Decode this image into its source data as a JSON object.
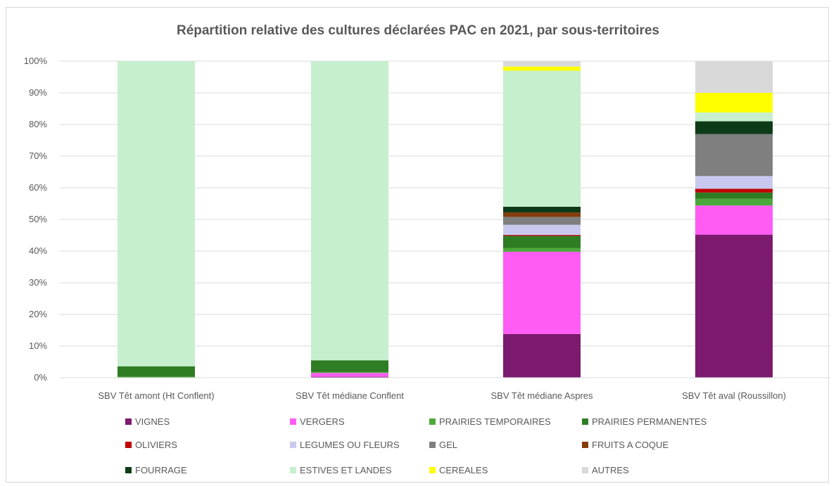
{
  "chart_data": {
    "type": "bar",
    "stacked": true,
    "title": "Répartition relative des cultures déclarées PAC en 2021, par sous-territoires",
    "xlabel": "",
    "ylabel": "",
    "ylim": [
      0,
      100
    ],
    "y_ticks": [
      "0%",
      "10%",
      "20%",
      "30%",
      "40%",
      "50%",
      "60%",
      "70%",
      "80%",
      "90%",
      "100%"
    ],
    "categories": [
      "SBV Têt amont (Ht Conflent)",
      "SBV Têt médiane Conflent",
      "SBV Têt médiane Aspres",
      "SBV Têt aval (Roussillon)"
    ],
    "series": [
      {
        "name": "VIGNES",
        "color": "#7b1a6e",
        "values": [
          0,
          0.3,
          13.8,
          45.2
        ]
      },
      {
        "name": "VERGERS",
        "color": "#ff5cf4",
        "values": [
          0,
          1.2,
          26.0,
          9.2
        ]
      },
      {
        "name": "PRAIRIES TEMPORAIRES",
        "color": "#4ca83c",
        "values": [
          0.3,
          0.3,
          1.2,
          2.1
        ]
      },
      {
        "name": "PRAIRIES PERMANENTES",
        "color": "#2e7d23",
        "values": [
          3.3,
          3.7,
          3.8,
          2.0
        ]
      },
      {
        "name": "OLIVIERS",
        "color": "#c00000",
        "values": [
          0,
          0,
          0.3,
          1.2
        ]
      },
      {
        "name": "LEGUMES OU FLEURS",
        "color": "#c9c9f0",
        "values": [
          0,
          0,
          3.2,
          4.0
        ]
      },
      {
        "name": "GEL",
        "color": "#7f7f7f",
        "values": [
          0,
          0,
          2.5,
          13.3
        ]
      },
      {
        "name": "FRUITS A COQUE",
        "color": "#843c0c",
        "values": [
          0,
          0,
          1.4,
          0
        ]
      },
      {
        "name": "FOURRAGE",
        "color": "#0d3b17",
        "values": [
          0,
          0,
          1.8,
          4.0
        ]
      },
      {
        "name": "ESTIVES ET LANDES",
        "color": "#c6efce",
        "values": [
          96.4,
          94.5,
          43.0,
          2.8
        ]
      },
      {
        "name": "CEREALES",
        "color": "#ffff00",
        "values": [
          0,
          0,
          1.3,
          6.2
        ]
      },
      {
        "name": "AUTRES",
        "color": "#d9d9d9",
        "values": [
          0,
          0,
          1.7,
          10.0
        ]
      }
    ],
    "grid": true,
    "legend_position": "bottom"
  }
}
